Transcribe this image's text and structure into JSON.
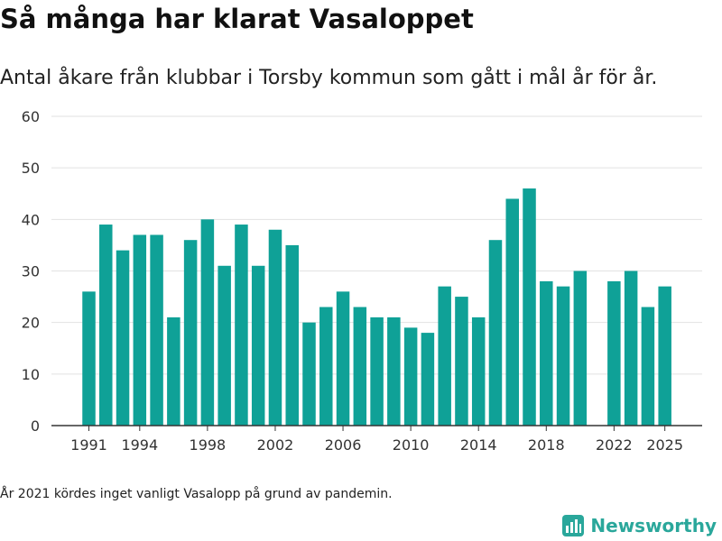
{
  "header": {
    "title": "Så många har klarat Vasaloppet",
    "subtitle": "Antal åkare från klubbar i Torsby kommun som gått i mål år för år."
  },
  "footnote": "År 2021 kördes inget vanligt Vasalopp på grund av pandemin.",
  "brand": {
    "name": "Newsworthy",
    "logo_icon": "bar-chart-logo-icon",
    "color": "#2aa79b"
  },
  "chart_data": {
    "type": "bar",
    "title": "",
    "xlabel": "",
    "ylabel": "",
    "ylim": [
      0,
      60
    ],
    "yticks": [
      0,
      10,
      20,
      30,
      40,
      50,
      60
    ],
    "xtick_labels": [
      "1991",
      "1994",
      "1998",
      "2002",
      "2006",
      "2010",
      "2014",
      "2018",
      "2022",
      "2025"
    ],
    "grid": true,
    "bar_color": "#0fa197",
    "categories": [
      1991,
      1992,
      1993,
      1994,
      1995,
      1996,
      1997,
      1998,
      1999,
      2000,
      2001,
      2002,
      2003,
      2004,
      2005,
      2006,
      2007,
      2008,
      2009,
      2010,
      2011,
      2012,
      2013,
      2014,
      2015,
      2016,
      2017,
      2018,
      2019,
      2020,
      2021,
      2022,
      2023,
      2024,
      2025
    ],
    "values": [
      26,
      39,
      34,
      37,
      37,
      21,
      36,
      40,
      31,
      39,
      31,
      38,
      35,
      20,
      23,
      26,
      23,
      21,
      21,
      19,
      18,
      27,
      25,
      21,
      36,
      44,
      46,
      28,
      27,
      30,
      null,
      28,
      30,
      23,
      27
    ]
  }
}
